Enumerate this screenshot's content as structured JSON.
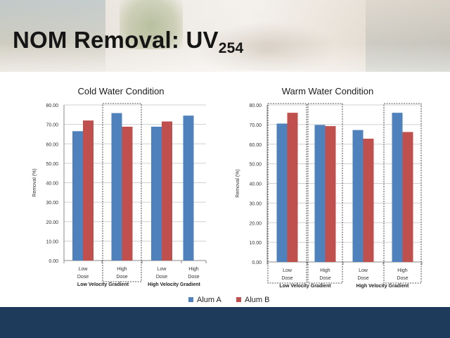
{
  "slide": {
    "title_main": "NOM Removal: UV",
    "title_sub": "254"
  },
  "colors": {
    "alum_a": "#4f81bd",
    "alum_b": "#c0504d",
    "footer": "#1f3b5c"
  },
  "legend": [
    "Alum A",
    "Alum B"
  ],
  "chart_data": [
    {
      "type": "bar",
      "title": "Cold Water Condition",
      "ylabel": "Removal (%)",
      "ylim": [
        0,
        80
      ],
      "yticks": [
        "0.00",
        "10.00",
        "20.00",
        "30.00",
        "40.00",
        "50.00",
        "60.00",
        "70.00",
        "80.00"
      ],
      "categories": [
        [
          "Low",
          "Dose"
        ],
        [
          "High",
          "Dose"
        ],
        [
          "Low",
          "Dose"
        ],
        [
          "High",
          "Dose"
        ]
      ],
      "groups": [
        "Low Velocity  Gradient",
        "High  Velocity Gradient"
      ],
      "series": [
        {
          "name": "Alum A",
          "values": [
            66.5,
            75.8,
            68.8,
            74.5
          ]
        },
        {
          "name": "Alum B",
          "values": [
            72.0,
            68.8,
            71.5,
            null
          ]
        }
      ],
      "highlighted": [
        1
      ]
    },
    {
      "type": "bar",
      "title": "Warm Water Condition",
      "ylabel": "Removal (%)",
      "ylim": [
        0,
        80
      ],
      "yticks": [
        "0.00",
        "10.00",
        "20.00",
        "30.00",
        "40.00",
        "50.00",
        "60.00",
        "70.00",
        "80.00"
      ],
      "categories": [
        [
          "Low",
          "Dose"
        ],
        [
          "High",
          "Dose"
        ],
        [
          "Low",
          "Dose"
        ],
        [
          "High",
          "Dose"
        ]
      ],
      "groups": [
        "Low Velocity  Gradient",
        "High  Velocity Gradient"
      ],
      "series": [
        {
          "name": "Alum A",
          "values": [
            70.5,
            69.8,
            67.2,
            76.0
          ]
        },
        {
          "name": "Alum B",
          "values": [
            76.0,
            69.2,
            62.8,
            66.2
          ]
        }
      ],
      "highlighted": [
        0,
        1,
        3
      ]
    }
  ]
}
